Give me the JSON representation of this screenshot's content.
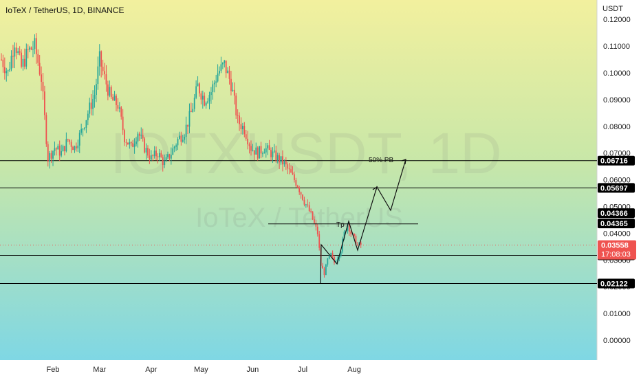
{
  "header": {
    "title": "IoTeX / TetherUS, 1D, BINANCE",
    "currency": "USDT"
  },
  "watermark": {
    "symbol": "IOTXUSDT, 1D",
    "name": "IoTeX / TetherUS"
  },
  "colors": {
    "up": "#26a69a",
    "down": "#ef5350",
    "bg_top": "#f2f09e",
    "bg_bottom": "#7fd7e4",
    "last_price": "#ef5350",
    "level_tag": "#000000"
  },
  "chart_data": {
    "type": "candlestick",
    "title": "IoTeX / TetherUS, 1D, BINANCE",
    "ylabel": "USDT",
    "ylim": [
      -0.01,
      0.125
    ],
    "x_ticks": [
      "Feb",
      "Mar",
      "Apr",
      "May",
      "Jun",
      "Jul",
      "Aug"
    ],
    "y_ticks": [
      "0.00000",
      "0.01000",
      "0.02000",
      "0.03000",
      "0.04000",
      "0.05000",
      "0.06000",
      "0.07000",
      "0.08000",
      "0.09000",
      "0.10000",
      "0.11000",
      "0.12000"
    ],
    "y_tick_values": [
      0.0,
      0.01,
      0.02,
      0.03,
      0.04,
      0.05,
      0.06,
      0.07,
      0.08,
      0.09,
      0.1,
      0.11,
      0.12
    ],
    "price_path": [
      [
        0,
        0.105
      ],
      [
        4,
        0.1
      ],
      [
        8,
        0.112
      ],
      [
        12,
        0.102
      ],
      [
        16,
        0.108
      ],
      [
        20,
        0.11
      ],
      [
        24,
        0.098
      ],
      [
        28,
        0.068
      ],
      [
        32,
        0.072
      ],
      [
        36,
        0.07
      ],
      [
        40,
        0.075
      ],
      [
        44,
        0.072
      ],
      [
        48,
        0.078
      ],
      [
        52,
        0.085
      ],
      [
        56,
        0.092
      ],
      [
        59,
        0.105
      ],
      [
        62,
        0.098
      ],
      [
        66,
        0.09
      ],
      [
        70,
        0.088
      ],
      [
        74,
        0.076
      ],
      [
        78,
        0.072
      ],
      [
        82,
        0.078
      ],
      [
        86,
        0.072
      ],
      [
        90,
        0.068
      ],
      [
        94,
        0.07
      ],
      [
        98,
        0.066
      ],
      [
        102,
        0.07
      ],
      [
        106,
        0.075
      ],
      [
        110,
        0.078
      ],
      [
        114,
        0.085
      ],
      [
        118,
        0.095
      ],
      [
        122,
        0.09
      ],
      [
        126,
        0.093
      ],
      [
        130,
        0.1
      ],
      [
        134,
        0.103
      ],
      [
        138,
        0.096
      ],
      [
        142,
        0.082
      ],
      [
        146,
        0.079
      ],
      [
        150,
        0.072
      ],
      [
        154,
        0.07
      ],
      [
        158,
        0.072
      ],
      [
        162,
        0.07
      ],
      [
        166,
        0.068
      ],
      [
        170,
        0.066
      ],
      [
        174,
        0.062
      ],
      [
        178,
        0.058
      ],
      [
        182,
        0.052
      ],
      [
        186,
        0.047
      ],
      [
        190,
        0.04
      ],
      [
        192,
        0.028
      ],
      [
        194,
        0.025
      ],
      [
        196,
        0.03
      ],
      [
        198,
        0.032
      ],
      [
        200,
        0.029
      ],
      [
        202,
        0.031
      ],
      [
        204,
        0.034
      ],
      [
        206,
        0.04
      ],
      [
        208,
        0.0437
      ],
      [
        210,
        0.04
      ],
      [
        212,
        0.038
      ],
      [
        214,
        0.0356
      ],
      [
        216,
        0.0356
      ]
    ],
    "horizontal_levels": [
      {
        "value": 0.06716,
        "label": "0.06716"
      },
      {
        "value": 0.05697,
        "label": "0.05697"
      },
      {
        "value": 0.03176,
        "label": "0.03176"
      },
      {
        "value": 0.02122,
        "label": "0.02122"
      }
    ],
    "value_tags": [
      {
        "value": 0.04366,
        "label": "0.04366"
      },
      {
        "value": 0.04365,
        "label": "0.04365"
      }
    ],
    "last_price": {
      "value": 0.03558,
      "label": "0.03558",
      "countdown": "17:08:03"
    },
    "annotations": [
      {
        "text": "Tp",
        "value": 0.0435
      },
      {
        "text": "50% PB",
        "value": 0.0676
      }
    ]
  }
}
